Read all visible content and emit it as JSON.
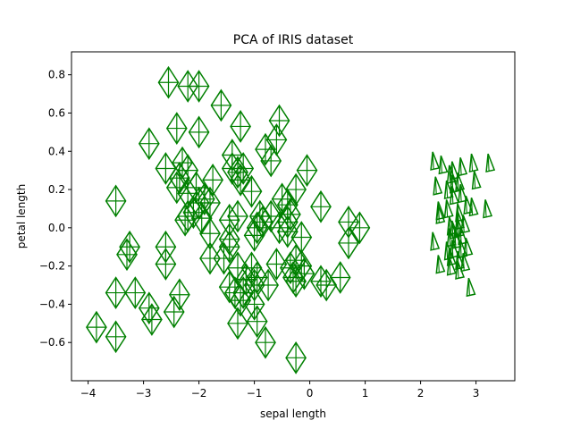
{
  "chart_data": {
    "type": "scatter",
    "title": "PCA of IRIS dataset",
    "xlabel": "sepal length",
    "ylabel": "petal length",
    "xlim": [
      -4.3,
      3.7
    ],
    "ylim": [
      -0.8,
      0.92
    ],
    "xticks": [
      -4,
      -3,
      -2,
      -1,
      0,
      1,
      2,
      3
    ],
    "yticks": [
      -0.6,
      -0.4,
      -0.2,
      0.0,
      0.2,
      0.4,
      0.6,
      0.8
    ],
    "ytick_labels": [
      "−0.6",
      "−0.4",
      "−0.2",
      "0.0",
      "0.2",
      "0.4",
      "0.6",
      "0.8"
    ],
    "xtick_labels": [
      "−4",
      "−3",
      "−2",
      "−1",
      "0",
      "1",
      "2",
      "3"
    ],
    "grid": false,
    "marker_color": "#008000",
    "series": [
      {
        "marker": "diamond",
        "points": [
          [
            -2.55,
            0.76
          ],
          [
            -2.2,
            0.74
          ],
          [
            -2.0,
            0.74
          ],
          [
            -1.6,
            0.64
          ],
          [
            -2.9,
            0.44
          ],
          [
            -2.4,
            0.52
          ],
          [
            -2.0,
            0.5
          ],
          [
            -1.25,
            0.53
          ],
          [
            -0.55,
            0.56
          ],
          [
            -0.8,
            0.41
          ],
          [
            -0.6,
            0.46
          ],
          [
            -0.7,
            0.35
          ],
          [
            -2.6,
            0.31
          ],
          [
            -2.3,
            0.34
          ],
          [
            -2.35,
            0.26
          ],
          [
            -2.4,
            0.21
          ],
          [
            -2.2,
            0.3
          ],
          [
            -1.4,
            0.38
          ],
          [
            -1.4,
            0.31
          ],
          [
            -1.3,
            0.29
          ],
          [
            -1.2,
            0.31
          ],
          [
            -1.25,
            0.25
          ],
          [
            -1.75,
            0.25
          ],
          [
            -1.05,
            0.19
          ],
          [
            -0.5,
            0.15
          ],
          [
            -0.25,
            0.2
          ],
          [
            -0.05,
            0.3
          ],
          [
            -3.5,
            0.14
          ],
          [
            -2.2,
            0.18
          ],
          [
            -2.05,
            0.21
          ],
          [
            -2.0,
            0.13
          ],
          [
            -1.9,
            0.15
          ],
          [
            -1.8,
            0.13
          ],
          [
            -2.1,
            0.08
          ],
          [
            -2.2,
            0.06
          ],
          [
            -2.25,
            0.04
          ],
          [
            -1.95,
            0.05
          ],
          [
            -1.3,
            0.06
          ],
          [
            -1.45,
            0.04
          ],
          [
            -0.9,
            0.06
          ],
          [
            -0.85,
            0.03
          ],
          [
            -0.7,
            0.06
          ],
          [
            -0.4,
            0.12
          ],
          [
            -0.35,
            0.07
          ],
          [
            -0.4,
            0.03
          ],
          [
            -0.55,
            0.0
          ],
          [
            -0.4,
            -0.02
          ],
          [
            -0.95,
            0.0
          ],
          [
            -1.0,
            -0.04
          ],
          [
            -1.45,
            -0.06
          ],
          [
            -1.8,
            -0.03
          ],
          [
            -0.15,
            -0.05
          ],
          [
            0.2,
            0.11
          ],
          [
            0.7,
            0.03
          ],
          [
            0.9,
            0.0
          ],
          [
            0.7,
            -0.08
          ],
          [
            -3.25,
            -0.1
          ],
          [
            -2.6,
            -0.1
          ],
          [
            -1.45,
            -0.1
          ],
          [
            -2.6,
            -0.19
          ],
          [
            -3.3,
            -0.14
          ],
          [
            -1.8,
            -0.16
          ],
          [
            -1.55,
            -0.16
          ],
          [
            -1.3,
            -0.21
          ],
          [
            -1.05,
            -0.21
          ],
          [
            -0.6,
            -0.19
          ],
          [
            -0.25,
            -0.17
          ],
          [
            -0.15,
            -0.2
          ],
          [
            -0.35,
            -0.21
          ],
          [
            -0.1,
            -0.24
          ],
          [
            -0.3,
            -0.26
          ],
          [
            -0.25,
            -0.28
          ],
          [
            0.2,
            -0.28
          ],
          [
            0.3,
            -0.3
          ],
          [
            0.55,
            -0.26
          ],
          [
            -0.75,
            -0.3
          ],
          [
            -0.95,
            -0.26
          ],
          [
            -1.0,
            -0.3
          ],
          [
            -1.15,
            -0.27
          ],
          [
            -1.45,
            -0.31
          ],
          [
            -1.35,
            -0.34
          ],
          [
            -1.2,
            -0.34
          ],
          [
            -3.5,
            -0.34
          ],
          [
            -3.15,
            -0.34
          ],
          [
            -2.35,
            -0.35
          ],
          [
            -2.9,
            -0.42
          ],
          [
            -2.45,
            -0.44
          ],
          [
            -1.25,
            -0.38
          ],
          [
            -1.0,
            -0.4
          ],
          [
            -2.85,
            -0.48
          ],
          [
            -1.3,
            -0.5
          ],
          [
            -0.95,
            -0.49
          ],
          [
            -3.85,
            -0.52
          ],
          [
            -3.5,
            -0.57
          ],
          [
            -0.8,
            -0.6
          ],
          [
            -0.25,
            -0.68
          ]
        ]
      },
      {
        "marker": "triangle",
        "points": [
          [
            2.25,
            0.35
          ],
          [
            2.4,
            0.33
          ],
          [
            2.6,
            0.3
          ],
          [
            2.75,
            0.32
          ],
          [
            2.95,
            0.34
          ],
          [
            3.25,
            0.34
          ],
          [
            2.55,
            0.28
          ],
          [
            2.6,
            0.23
          ],
          [
            2.7,
            0.24
          ],
          [
            2.3,
            0.22
          ],
          [
            2.5,
            0.2
          ],
          [
            2.6,
            0.17
          ],
          [
            2.75,
            0.18
          ],
          [
            3.0,
            0.25
          ],
          [
            3.2,
            0.1
          ],
          [
            2.85,
            0.12
          ],
          [
            2.95,
            0.11
          ],
          [
            2.35,
            0.09
          ],
          [
            2.5,
            0.1
          ],
          [
            2.7,
            0.08
          ],
          [
            2.7,
            0.04
          ],
          [
            2.35,
            0.07
          ],
          [
            2.55,
            0.01
          ],
          [
            2.6,
            -0.01
          ],
          [
            2.7,
            0.0
          ],
          [
            2.8,
            0.02
          ],
          [
            2.55,
            -0.05
          ],
          [
            2.65,
            -0.06
          ],
          [
            2.75,
            -0.04
          ],
          [
            2.25,
            -0.07
          ],
          [
            2.6,
            -0.11
          ],
          [
            2.75,
            -0.11
          ],
          [
            2.5,
            -0.12
          ],
          [
            2.85,
            -0.1
          ],
          [
            2.55,
            -0.15
          ],
          [
            2.7,
            -0.17
          ],
          [
            2.8,
            -0.18
          ],
          [
            2.35,
            -0.19
          ],
          [
            2.55,
            -0.2
          ],
          [
            2.7,
            -0.22
          ],
          [
            2.9,
            -0.31
          ]
        ]
      }
    ]
  }
}
